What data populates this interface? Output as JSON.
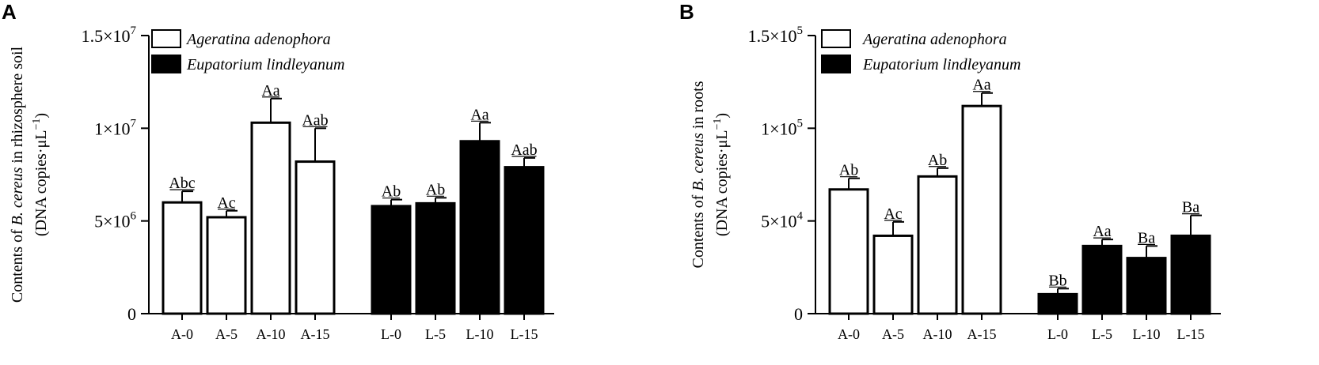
{
  "chart_data": [
    {
      "panel": "A",
      "type": "bar",
      "ylabel_parts": [
        "Contents of ",
        "B. cereus",
        " in rhizosphere soil"
      ],
      "ylabel_units": [
        "(DNA copies·μL",
        "−1",
        ")"
      ],
      "ylim": [
        0,
        15000000
      ],
      "yticks": [
        {
          "value": 0,
          "mant": "0",
          "exp": ""
        },
        {
          "value": 5000000,
          "mant": "5×10",
          "exp": "6"
        },
        {
          "value": 10000000,
          "mant": "1×10",
          "exp": "7"
        },
        {
          "value": 15000000,
          "mant": "1.5×10",
          "exp": "7"
        }
      ],
      "legend": [
        {
          "name": "Ageratina adenophora",
          "fill": "#ffffff"
        },
        {
          "name": "Eupatorium lindleyanum",
          "fill": "#000000"
        }
      ],
      "categories": [
        "A-0",
        "A-5",
        "A-10",
        "A-15",
        "L-0",
        "L-5",
        "L-10",
        "L-15"
      ],
      "values": [
        6000000,
        5200000,
        10300000,
        8200000,
        5800000,
        5950000,
        9300000,
        7900000
      ],
      "errors": [
        600000,
        350000,
        1300000,
        1800000,
        350000,
        300000,
        1000000,
        500000
      ],
      "labels": [
        "Abc",
        "Ac",
        "Aa",
        "Aab",
        "Ab",
        "Ab",
        "Aa",
        "Aab"
      ],
      "fills": [
        "#ffffff",
        "#ffffff",
        "#ffffff",
        "#ffffff",
        "#000000",
        "#000000",
        "#000000",
        "#000000"
      ]
    },
    {
      "panel": "B",
      "type": "bar",
      "ylabel_parts": [
        "Contents of ",
        "B. cereus",
        " in roots"
      ],
      "ylabel_units": [
        "(DNA copies·μL",
        "−1",
        ")"
      ],
      "ylim": [
        0,
        150000
      ],
      "yticks": [
        {
          "value": 0,
          "mant": "0",
          "exp": ""
        },
        {
          "value": 50000,
          "mant": "5×10",
          "exp": "4"
        },
        {
          "value": 100000,
          "mant": "1×10",
          "exp": "5"
        },
        {
          "value": 150000,
          "mant": "1.5×10",
          "exp": "5"
        }
      ],
      "legend": [
        {
          "name": "Ageratina adenophora",
          "fill": "#ffffff"
        },
        {
          "name": "Eupatorium lindleyanum",
          "fill": "#000000"
        }
      ],
      "categories": [
        "A-0",
        "A-5",
        "A-10",
        "A-15",
        "L-0",
        "L-5",
        "L-10",
        "L-15"
      ],
      "values": [
        67000,
        42000,
        74000,
        112000,
        10500,
        36500,
        30000,
        42000
      ],
      "errors": [
        6000,
        7500,
        4500,
        7000,
        3000,
        3500,
        6500,
        11000
      ],
      "labels": [
        "Ab",
        "Ac",
        "Ab",
        "Aa",
        "Bb",
        "Aa",
        "Ba",
        "Ba"
      ],
      "fills": [
        "#ffffff",
        "#ffffff",
        "#ffffff",
        "#ffffff",
        "#000000",
        "#000000",
        "#000000",
        "#000000"
      ]
    }
  ]
}
